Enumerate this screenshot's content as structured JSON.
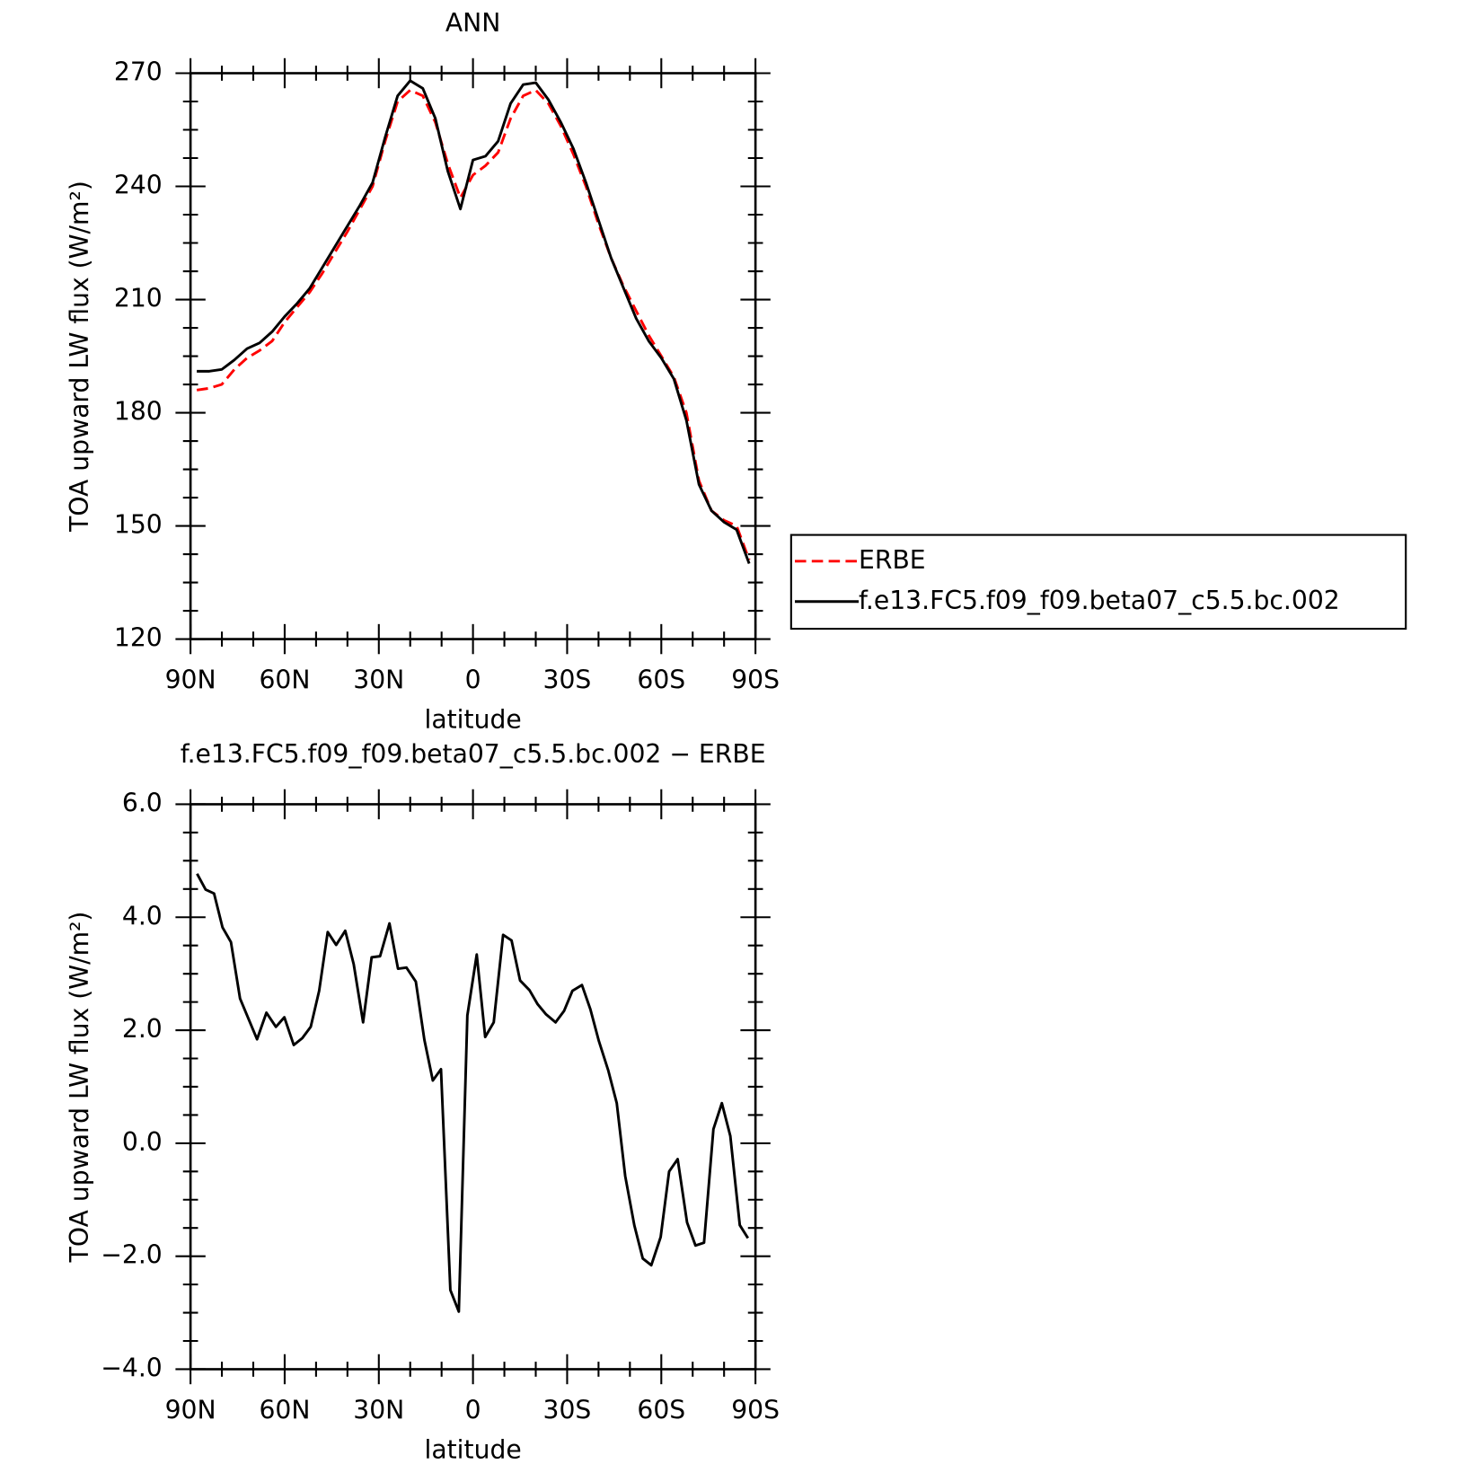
{
  "chart_data": [
    {
      "type": "line",
      "title": "ANN",
      "xlabel": "latitude",
      "ylabel": "TOA upward LW flux (W/m²)",
      "x": [
        88,
        84,
        80,
        76,
        72,
        68,
        64,
        60,
        56,
        52,
        48,
        44,
        40,
        36,
        32,
        28,
        24,
        20,
        16,
        12,
        8,
        4,
        0,
        -4,
        -8,
        -12,
        -16,
        -20,
        -24,
        -28,
        -32,
        -36,
        -40,
        -44,
        -48,
        -52,
        -56,
        -60,
        -64,
        -68,
        -72,
        -76,
        -80,
        -84,
        -88
      ],
      "series": [
        {
          "name": "ERBE",
          "color": "#ff0000",
          "dash": true,
          "values": [
            186,
            186.5,
            187.5,
            191.5,
            194.5,
            196.5,
            199,
            204,
            208,
            212,
            217,
            222.5,
            228,
            234,
            240,
            252,
            262.5,
            265.5,
            264,
            257,
            246,
            237,
            243,
            245.5,
            249,
            258,
            264,
            265.5,
            262,
            256,
            248.5,
            240,
            230,
            221,
            213.5,
            207,
            200.5,
            195,
            189.5,
            180,
            162,
            154,
            151.5,
            150,
            141
          ]
        },
        {
          "name": "f.e13.FC5.f09_f09.beta07_c5.5.bc.002",
          "color": "#000000",
          "dash": false,
          "values": [
            191,
            191,
            191.5,
            194,
            197,
            198.5,
            201.5,
            205.5,
            209,
            213,
            218.5,
            224,
            229.5,
            235,
            241,
            253,
            264,
            268,
            266,
            258,
            244,
            234,
            247,
            248,
            252,
            262,
            267,
            267.5,
            263,
            257,
            250,
            241,
            231,
            221,
            213,
            205,
            199,
            194.5,
            189,
            178,
            161,
            154,
            151,
            149,
            140
          ]
        }
      ],
      "xlim": [
        90,
        -90
      ],
      "xticks": [
        {
          "value": 90,
          "label": "90N"
        },
        {
          "value": 60,
          "label": "60N"
        },
        {
          "value": 30,
          "label": "30N"
        },
        0,
        {
          "value": -30,
          "label": "30S"
        },
        {
          "value": -60,
          "label": "60S"
        },
        {
          "value": -90,
          "label": "90S"
        }
      ],
      "ylim": [
        120,
        270
      ],
      "yticks": [
        120,
        150,
        180,
        210,
        240,
        270
      ],
      "legend": "right"
    },
    {
      "type": "line",
      "title": "f.e13.FC5.f09_f09.beta07_c5.5.bc.002 − ERBE",
      "xlabel": "latitude",
      "ylabel": "TOA upward LW flux (W/m²)",
      "x": [
        87.9,
        85.2,
        82.5,
        79.8,
        77.1,
        74.2,
        68.8,
        65.8,
        62.8,
        60.1,
        57.1,
        54.4,
        51.7,
        49.0,
        46.3,
        43.6,
        40.7,
        38.0,
        35.0,
        32.3,
        29.6,
        26.6,
        23.9,
        21.2,
        18.2,
        15.5,
        12.8,
        10.2,
        7.2,
        4.5,
        1.8,
        -1.2,
        -3.9,
        -6.6,
        -9.6,
        -12.3,
        -15.0,
        -18.0,
        -20.6,
        -23.3,
        -26.3,
        -29.0,
        -31.7,
        -34.7,
        -37.4,
        -40.1,
        -43.1,
        -45.8,
        -48.5,
        -51.4,
        -54.1,
        -56.8,
        -59.8,
        -62.5,
        -65.2,
        -68.2,
        -70.9,
        -73.6,
        -76.6,
        -79.3,
        -82.0,
        -85.0,
        -87.6
      ],
      "values": [
        4.77,
        4.49,
        4.42,
        3.82,
        3.56,
        2.56,
        1.84,
        2.31,
        2.06,
        2.23,
        1.74,
        1.86,
        2.06,
        2.7,
        3.74,
        3.51,
        3.76,
        3.17,
        2.14,
        3.29,
        3.31,
        3.89,
        3.09,
        3.11,
        2.86,
        1.83,
        1.11,
        1.31,
        -2.6,
        -2.98,
        2.26,
        3.34,
        1.88,
        2.14,
        3.69,
        3.59,
        2.88,
        2.71,
        2.46,
        2.28,
        2.14,
        2.34,
        2.7,
        2.8,
        2.37,
        1.81,
        1.29,
        0.71,
        -0.58,
        -1.45,
        -2.04,
        -2.16,
        -1.66,
        -0.5,
        -0.28,
        -1.4,
        -1.81,
        -1.76,
        0.25,
        0.71,
        0.13,
        -1.45,
        -1.68
      ],
      "color": "#000000",
      "xlim": [
        90,
        -90
      ],
      "xticks": [
        {
          "value": 90,
          "label": "90N"
        },
        {
          "value": 60,
          "label": "60N"
        },
        {
          "value": 30,
          "label": "30N"
        },
        0,
        {
          "value": -30,
          "label": "30S"
        },
        {
          "value": -60,
          "label": "60S"
        },
        {
          "value": -90,
          "label": "90S"
        }
      ],
      "ylim": [
        -4,
        6
      ],
      "yticks": [
        {
          "value": -4,
          "label": "−4.0"
        },
        {
          "value": -2,
          "label": "−2.0"
        },
        {
          "value": 0,
          "label": "0.0"
        },
        {
          "value": 2,
          "label": "2.0"
        },
        {
          "value": 4,
          "label": "4.0"
        },
        {
          "value": 6,
          "label": "6.0"
        }
      ]
    }
  ]
}
